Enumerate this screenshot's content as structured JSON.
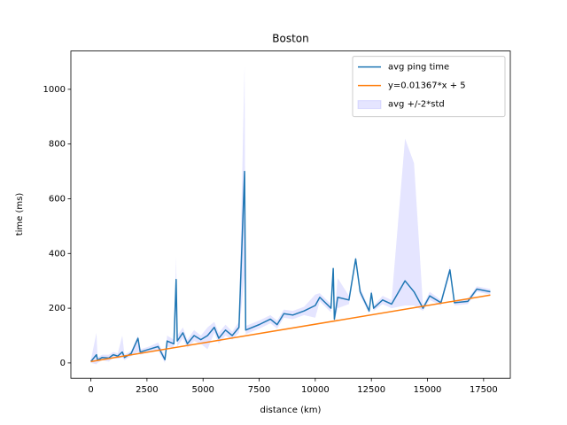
{
  "chart_data": {
    "type": "line",
    "title": "Boston",
    "x_label": "distance (km)",
    "y_label": "time (ms)",
    "xlim": [
      -890,
      18690
    ],
    "ylim": [
      -56,
      1140
    ],
    "xticks": [
      0,
      2500,
      5000,
      7500,
      10000,
      12500,
      15000,
      17500
    ],
    "yticks": [
      0,
      200,
      400,
      600,
      800,
      1000
    ],
    "legend": "upper right",
    "series": [
      {
        "name": "avg ping time",
        "color": "#1f77b4",
        "kind": "line",
        "x": [
          0,
          250,
          300,
          500,
          800,
          1000,
          1200,
          1400,
          1500,
          1800,
          2100,
          2200,
          2600,
          3000,
          3300,
          3400,
          3700,
          3800,
          3850,
          4100,
          4300,
          4600,
          4900,
          5200,
          5500,
          5700,
          6000,
          6300,
          6600,
          6850,
          6900,
          7500,
          8000,
          8300,
          8600,
          9000,
          9500,
          10000,
          10200,
          10700,
          10800,
          10850,
          11000,
          11500,
          11800,
          12000,
          12400,
          12500,
          12600,
          13000,
          13400,
          14000,
          14400,
          14800,
          15100,
          15600,
          16000,
          16200,
          16800,
          17200,
          17800
        ],
        "values": [
          5,
          30,
          10,
          20,
          18,
          30,
          25,
          40,
          20,
          35,
          90,
          40,
          50,
          60,
          12,
          80,
          70,
          305,
          80,
          110,
          70,
          100,
          85,
          100,
          130,
          90,
          120,
          100,
          130,
          700,
          120,
          140,
          160,
          140,
          180,
          175,
          190,
          210,
          240,
          200,
          345,
          160,
          240,
          230,
          380,
          260,
          190,
          255,
          200,
          230,
          215,
          300,
          260,
          200,
          245,
          220,
          340,
          220,
          225,
          270,
          260
        ]
      },
      {
        "name": "y=0.01367*x + 5",
        "color": "#ff7f0e",
        "kind": "line",
        "x": [
          0,
          17800
        ],
        "values": [
          5,
          248
        ]
      },
      {
        "name": "avg +/-2*std",
        "color": "#0000ff",
        "kind": "band",
        "x": [
          0,
          250,
          300,
          500,
          800,
          1000,
          1200,
          1400,
          1500,
          1800,
          2100,
          2200,
          2600,
          3000,
          3300,
          3400,
          3700,
          3800,
          3850,
          4100,
          4300,
          4600,
          4900,
          5200,
          5500,
          5700,
          6000,
          6300,
          6600,
          6850,
          6900,
          7500,
          8000,
          8300,
          8600,
          9000,
          9500,
          10000,
          10200,
          10700,
          10800,
          10850,
          11000,
          11500,
          11800,
          12000,
          12400,
          12500,
          12600,
          13000,
          13400,
          14000,
          14400,
          14800,
          15100,
          15600,
          16000,
          16200,
          16800,
          17200,
          17800
        ],
        "lower": [
          0,
          -5,
          0,
          10,
          5,
          20,
          15,
          20,
          10,
          25,
          40,
          30,
          40,
          45,
          0,
          60,
          55,
          200,
          60,
          90,
          55,
          80,
          70,
          50,
          110,
          70,
          100,
          85,
          110,
          320,
          105,
          125,
          145,
          125,
          165,
          160,
          175,
          165,
          225,
          185,
          320,
          150,
          200,
          215,
          370,
          245,
          180,
          245,
          190,
          215,
          200,
          210,
          210,
          190,
          230,
          210,
          325,
          210,
          215,
          260,
          250
        ],
        "upper": [
          10,
          110,
          20,
          30,
          30,
          40,
          35,
          100,
          30,
          45,
          100,
          50,
          60,
          75,
          25,
          100,
          85,
          390,
          100,
          130,
          85,
          120,
          100,
          130,
          150,
          110,
          140,
          115,
          150,
          1090,
          135,
          155,
          175,
          155,
          195,
          190,
          205,
          250,
          255,
          215,
          350,
          175,
          310,
          245,
          390,
          275,
          200,
          270,
          210,
          245,
          230,
          820,
          730,
          210,
          260,
          230,
          355,
          230,
          235,
          280,
          270
        ]
      }
    ]
  }
}
